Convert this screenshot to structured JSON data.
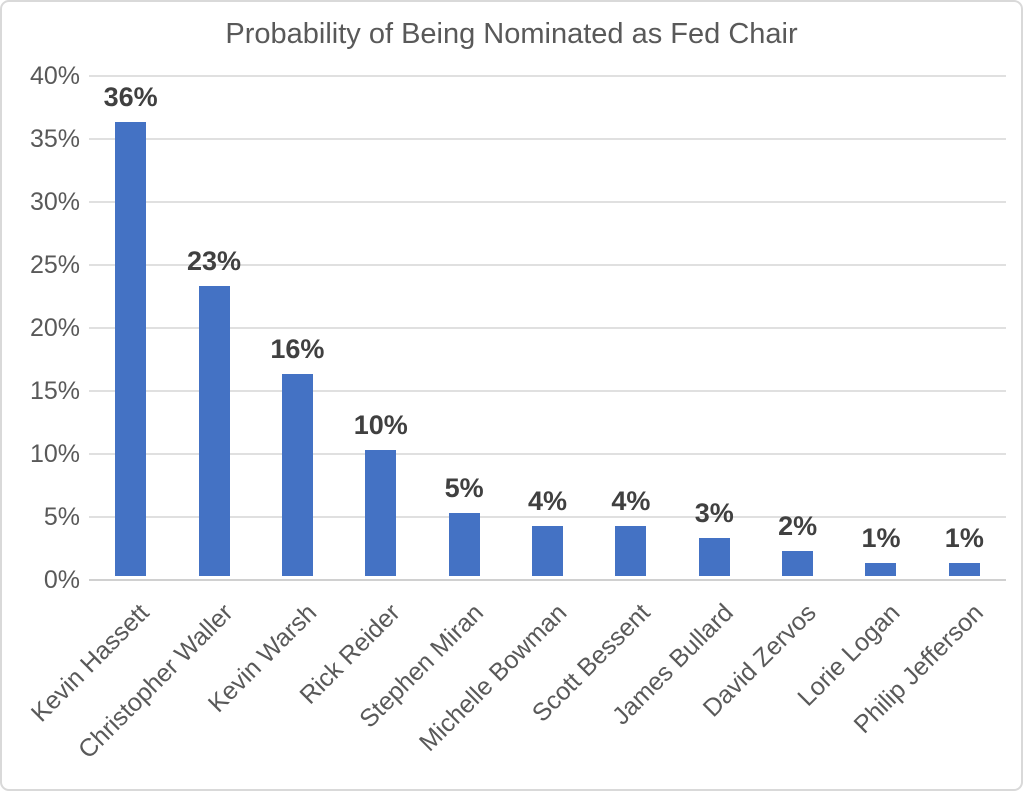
{
  "chart_data": {
    "type": "bar",
    "title": "Probability of Being Nominated as Fed Chair",
    "categories": [
      "Kevin Hassett",
      "Christopher Waller",
      "Kevin Warsh",
      "Rick Reider",
      "Stephen Miran",
      "Michelle Bowman",
      "Scott Bessent",
      "James Bullard",
      "David Zervos",
      "Lorie Logan",
      "Philip Jefferson"
    ],
    "values": [
      36,
      23,
      16,
      10,
      5,
      4,
      4,
      3,
      2,
      1,
      1
    ],
    "data_labels": [
      "36%",
      "23%",
      "16%",
      "10%",
      "5%",
      "4%",
      "4%",
      "3%",
      "2%",
      "1%",
      "1%"
    ],
    "xlabel": "",
    "ylabel": "",
    "ylim": [
      0,
      40
    ],
    "ytick_step": 5,
    "yticks": [
      "0%",
      "5%",
      "10%",
      "15%",
      "20%",
      "25%",
      "30%",
      "35%",
      "40%"
    ],
    "grid": "horizontal",
    "legend_position": "none",
    "bar_color": "#4472C4",
    "value_label_color": "#404040",
    "axis_label_color": "#595959",
    "gridline_color": "#E0E0E0",
    "title_color": "#595959"
  }
}
